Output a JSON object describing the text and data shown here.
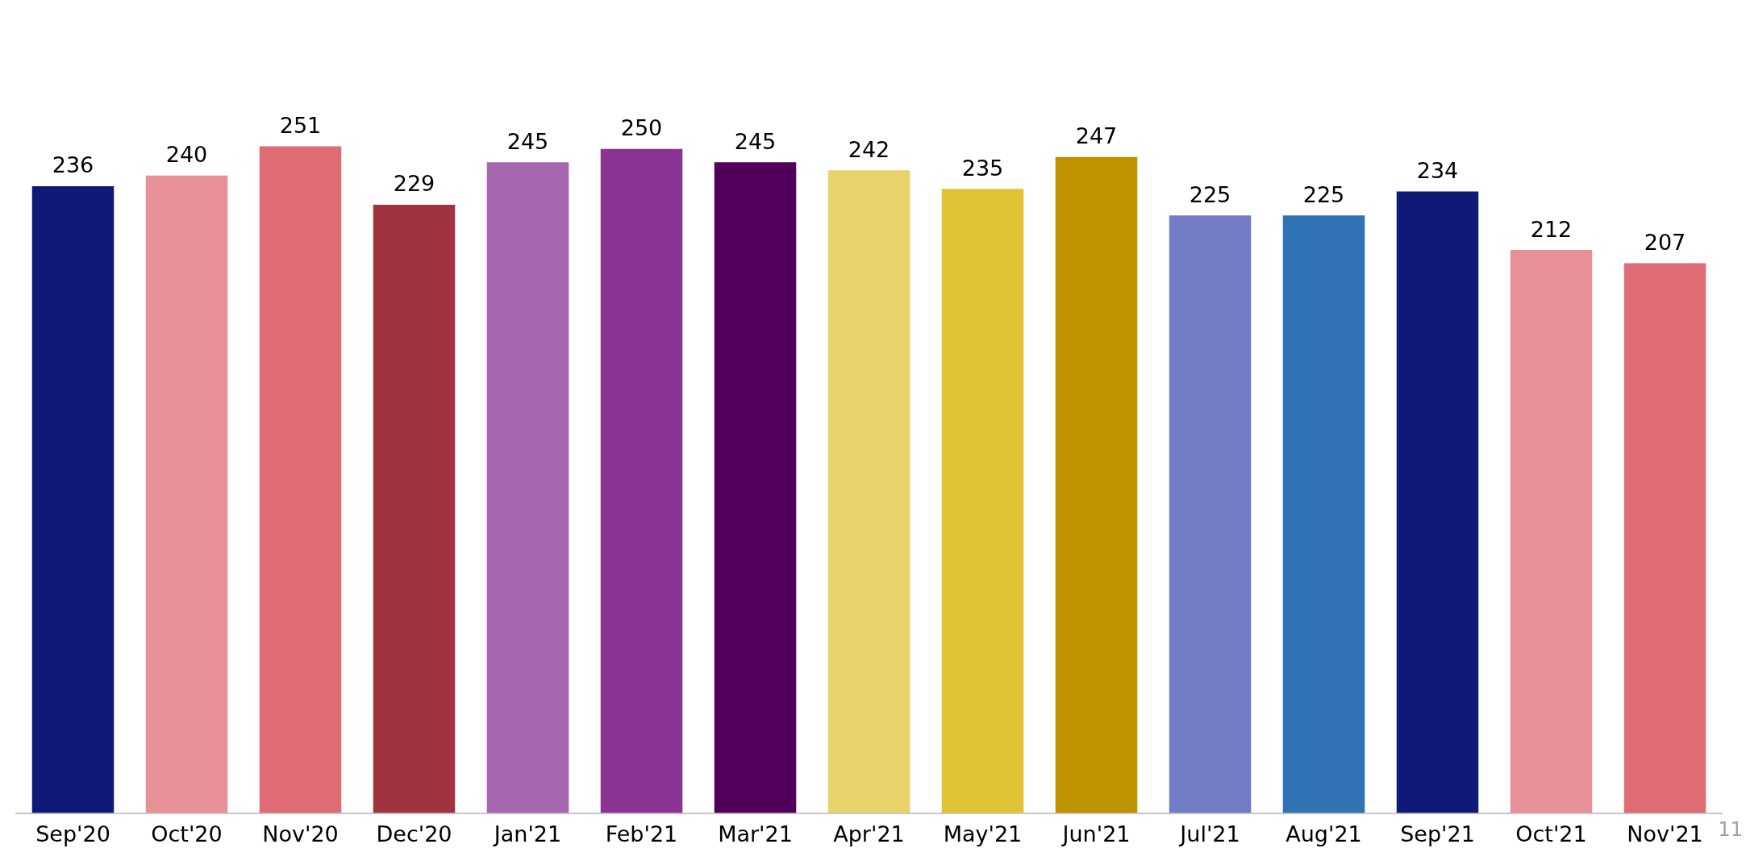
{
  "chart_data": {
    "type": "bar",
    "categories": [
      "Sep'20",
      "Oct'20",
      "Nov'20",
      "Dec'20",
      "Jan'21",
      "Feb'21",
      "Mar'21",
      "Apr'21",
      "May'21",
      "Jun'21",
      "Jul'21",
      "Aug'21",
      "Sep'21",
      "Oct'21",
      "Nov'21"
    ],
    "values": [
      236,
      240,
      251,
      229,
      245,
      250,
      245,
      242,
      235,
      247,
      225,
      225,
      234,
      212,
      207
    ],
    "colors": [
      "#0f1a78",
      "#e89098",
      "#df6b74",
      "#a0333f",
      "#a666b0",
      "#8a3393",
      "#500058",
      "#e8d26a",
      "#e0c235",
      "#bf9200",
      "#727bc5",
      "#2f73b5",
      "#0f1a78",
      "#e89098",
      "#df6b74"
    ],
    "tick_labels": "x",
    "legend": false,
    "data_labels": true,
    "annotations": [
      "11"
    ]
  }
}
